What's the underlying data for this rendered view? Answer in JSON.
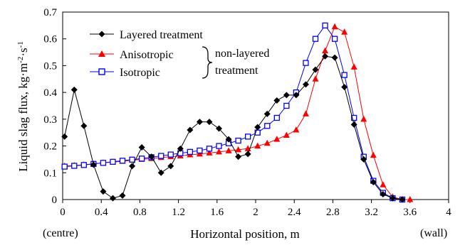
{
  "chart_data": {
    "type": "line",
    "xlabel": "Horizontal position, m",
    "ylabel_main": "Liquid slag flux, kg·m",
    "ylabel_exp1": "-2",
    "ylabel_mid": "·s",
    "ylabel_exp2": "-1",
    "x_ticks": [
      0,
      0.4,
      0.8,
      1.2,
      1.6,
      2,
      2.4,
      2.8,
      3.2,
      3.6,
      4
    ],
    "x_tick_labels": [
      "0",
      "0.4",
      "0.8",
      "1.2",
      "1.6",
      "2",
      "2.4",
      "2.8",
      "3.2",
      "3.6",
      "4"
    ],
    "y_ticks": [
      0,
      0.1,
      0.2,
      0.3,
      0.4,
      0.5,
      0.6,
      0.7
    ],
    "y_tick_labels": [
      "0",
      "0.1",
      "0.2",
      "0.3",
      "0.4",
      "0.5",
      "0.6",
      "0.7"
    ],
    "xlim": [
      0,
      4
    ],
    "ylim": [
      0,
      0.7
    ],
    "x_left_note": "(centre)",
    "x_right_note": "(wall)",
    "legend": {
      "placement": "top-left",
      "layered": "Layered treatment",
      "anisotropic": "Anisotropic",
      "isotropic": "Isotropic",
      "group_line1": "non-layered",
      "group_line2": "treatment"
    },
    "colors": {
      "layered": "#000000",
      "anisotropic": "#ff0000",
      "isotropic": "#0000ff"
    },
    "series": [
      {
        "key": "layered",
        "name": "Layered treatment",
        "marker": "diamond",
        "x": [
          0.02,
          0.12,
          0.22,
          0.32,
          0.42,
          0.52,
          0.62,
          0.72,
          0.82,
          0.92,
          1.02,
          1.12,
          1.22,
          1.32,
          1.42,
          1.52,
          1.62,
          1.72,
          1.82,
          1.92,
          2.02,
          2.12,
          2.22,
          2.32,
          2.42,
          2.52,
          2.62,
          2.72,
          2.82,
          2.92,
          3.02,
          3.12,
          3.22,
          3.32,
          3.42,
          3.52
        ],
        "y": [
          0.235,
          0.41,
          0.275,
          0.13,
          0.03,
          0.005,
          0.015,
          0.125,
          0.195,
          0.16,
          0.1,
          0.125,
          0.19,
          0.26,
          0.29,
          0.29,
          0.265,
          0.225,
          0.16,
          0.17,
          0.27,
          0.32,
          0.37,
          0.39,
          0.39,
          0.43,
          0.485,
          0.535,
          0.53,
          0.42,
          0.28,
          0.15,
          0.065,
          0.02,
          0.005,
          0.0
        ]
      },
      {
        "key": "anisotropic",
        "name": "Anisotropic",
        "marker": "triangle",
        "x": [
          0.02,
          0.12,
          0.22,
          0.32,
          0.42,
          0.52,
          0.62,
          0.72,
          0.82,
          0.92,
          1.02,
          1.12,
          1.22,
          1.32,
          1.42,
          1.52,
          1.62,
          1.72,
          1.82,
          1.92,
          2.02,
          2.12,
          2.22,
          2.32,
          2.42,
          2.52,
          2.62,
          2.72,
          2.82,
          2.92,
          3.02,
          3.12,
          3.22,
          3.32,
          3.42,
          3.52,
          3.6
        ],
        "y": [
          0.125,
          0.127,
          0.13,
          0.133,
          0.137,
          0.14,
          0.143,
          0.147,
          0.15,
          0.153,
          0.157,
          0.16,
          0.163,
          0.167,
          0.17,
          0.174,
          0.178,
          0.182,
          0.186,
          0.19,
          0.2,
          0.21,
          0.225,
          0.24,
          0.26,
          0.32,
          0.45,
          0.555,
          0.645,
          0.625,
          0.495,
          0.3,
          0.165,
          0.055,
          0.01,
          0.0,
          0.0
        ]
      },
      {
        "key": "isotropic",
        "name": "Isotropic",
        "marker": "square",
        "x": [
          0.02,
          0.12,
          0.22,
          0.32,
          0.42,
          0.52,
          0.62,
          0.72,
          0.82,
          0.92,
          1.02,
          1.12,
          1.22,
          1.32,
          1.42,
          1.52,
          1.62,
          1.72,
          1.82,
          1.92,
          2.02,
          2.12,
          2.22,
          2.32,
          2.42,
          2.52,
          2.62,
          2.72,
          2.82,
          2.92,
          3.02,
          3.12,
          3.22,
          3.32,
          3.42,
          3.52
        ],
        "y": [
          0.123,
          0.126,
          0.129,
          0.133,
          0.137,
          0.141,
          0.145,
          0.149,
          0.153,
          0.158,
          0.163,
          0.168,
          0.173,
          0.178,
          0.183,
          0.19,
          0.2,
          0.21,
          0.22,
          0.235,
          0.25,
          0.275,
          0.305,
          0.35,
          0.4,
          0.51,
          0.6,
          0.65,
          0.6,
          0.465,
          0.305,
          0.16,
          0.07,
          0.025,
          0.005,
          0.0
        ]
      }
    ]
  }
}
